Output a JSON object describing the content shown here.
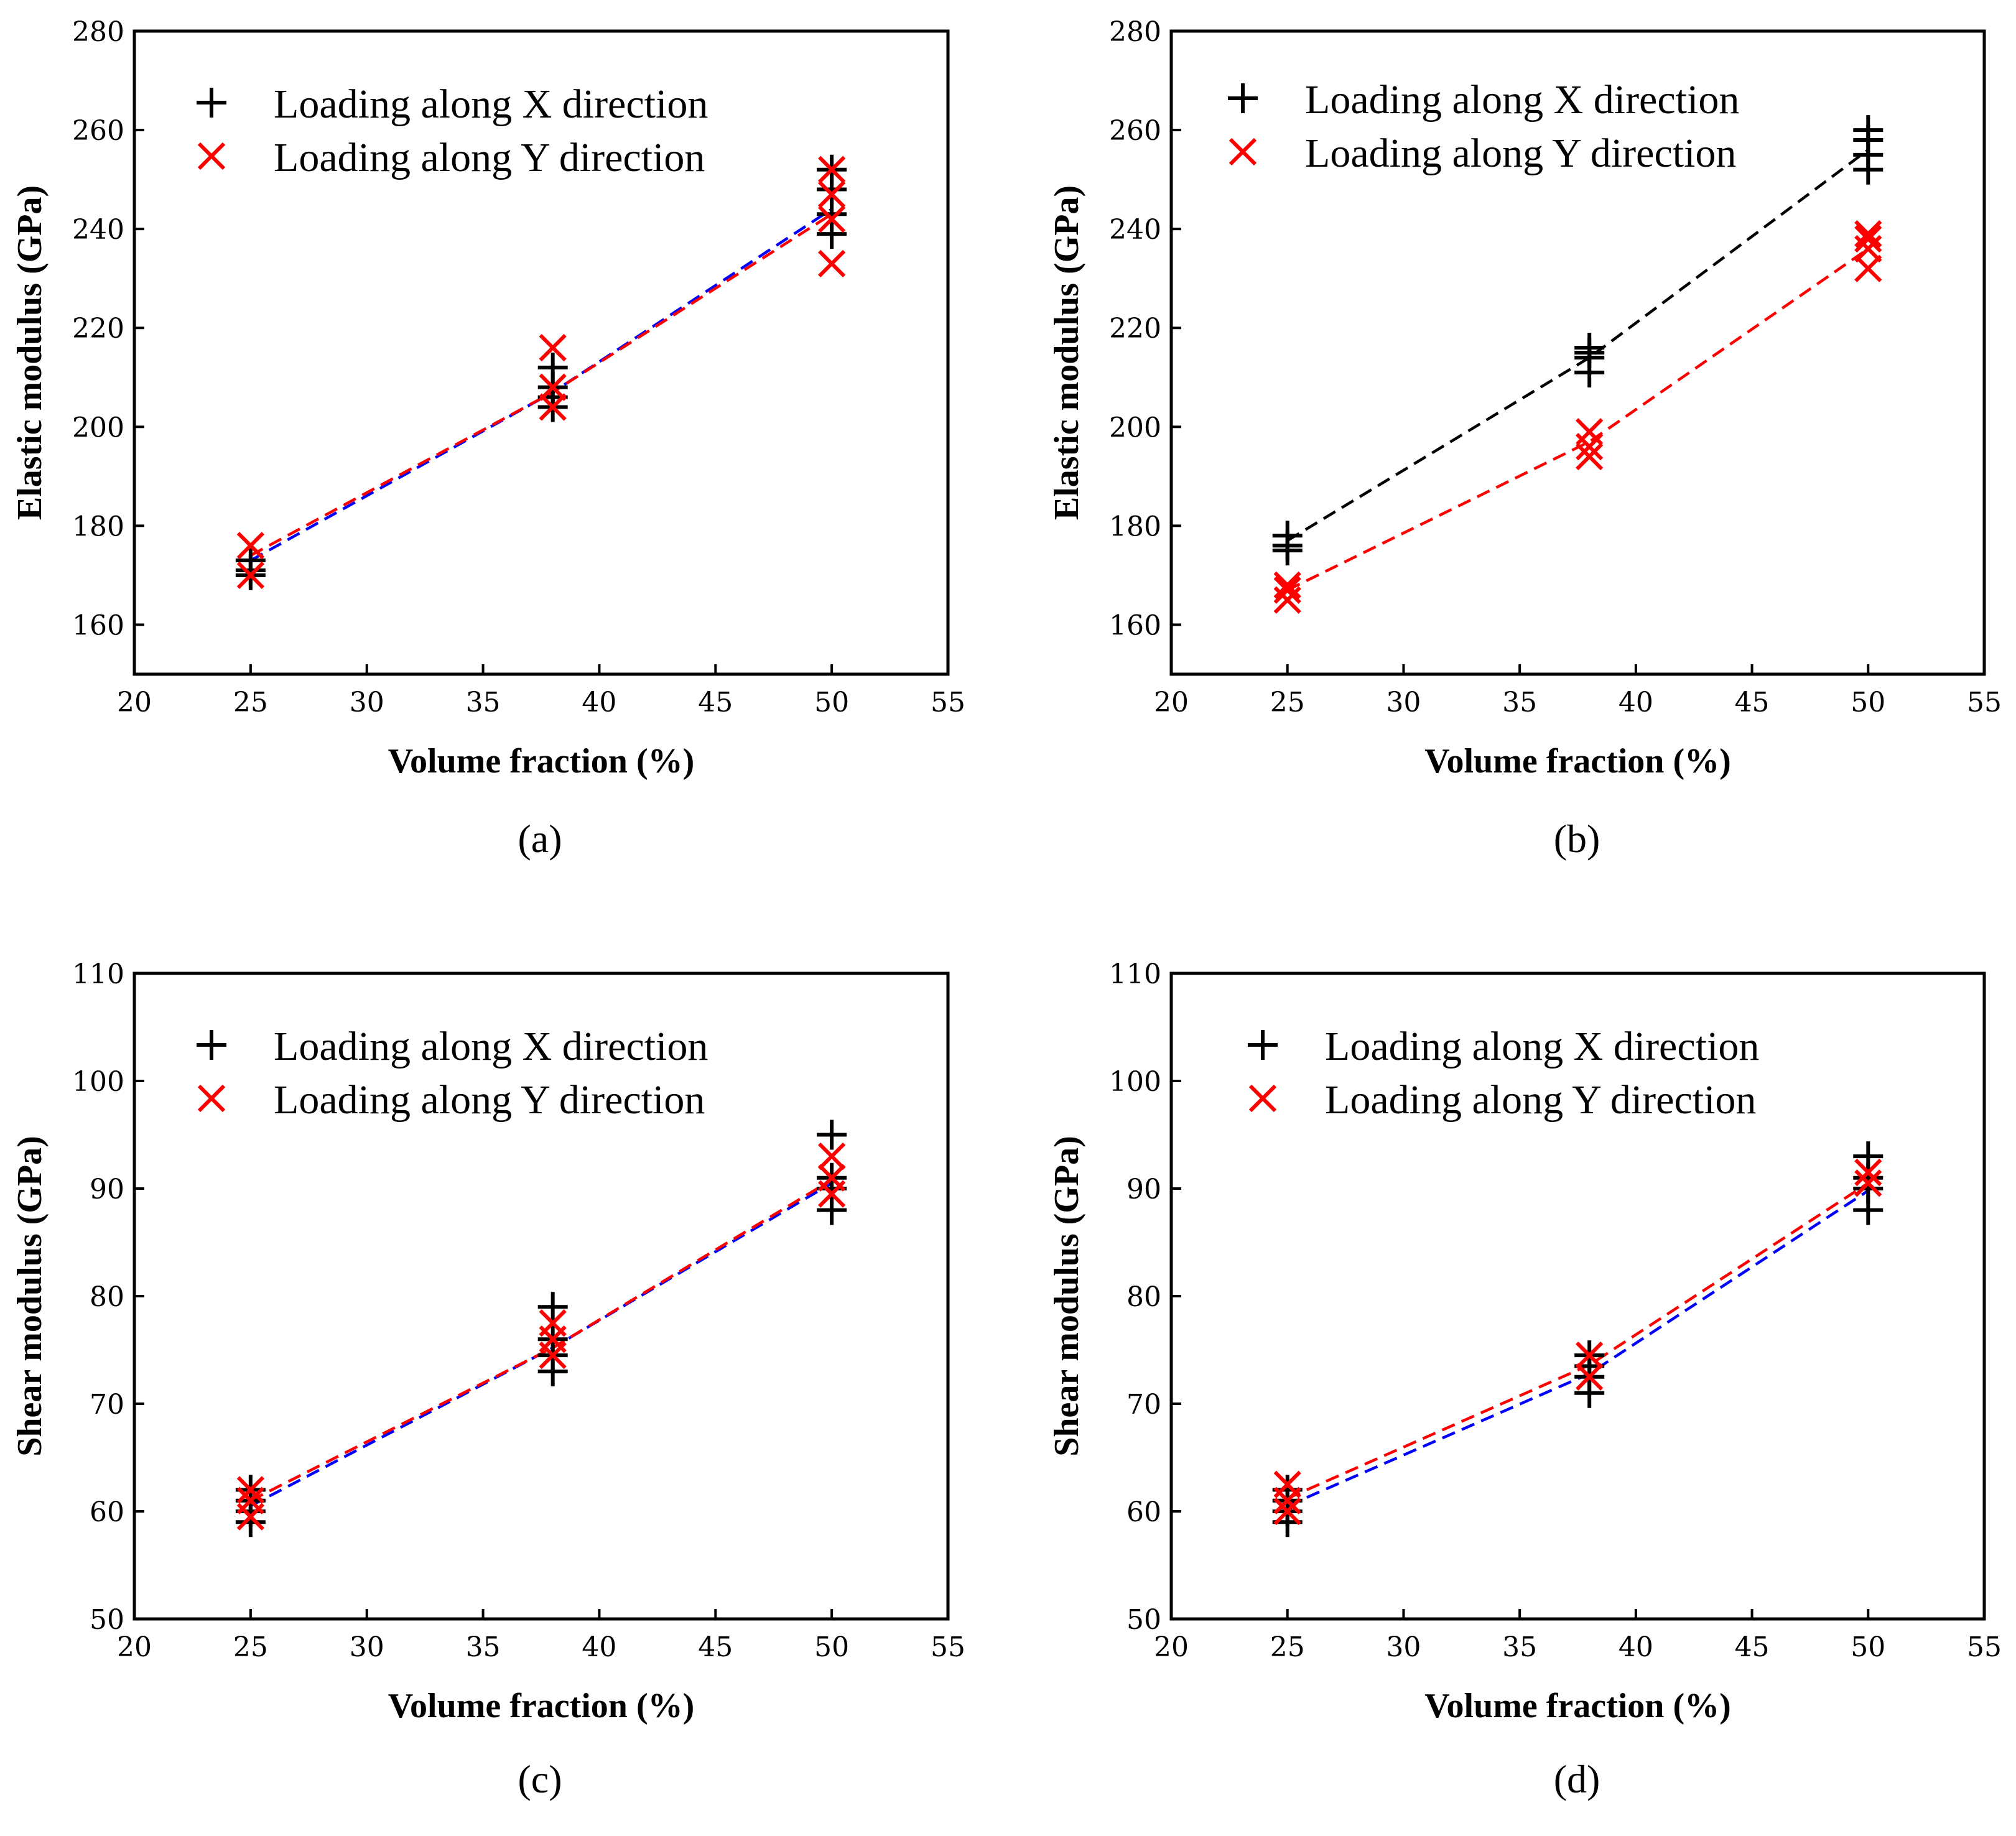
{
  "colors": {
    "x_direction": "#000000",
    "y_direction": "#ff0000",
    "fit_x_a": "#0000ff",
    "fit_y": "#ff0000",
    "fit_x_b": "#000000"
  },
  "legend": {
    "x_label": "Loading along X direction",
    "y_label": "Loading along Y direction",
    "x_marker": "plus-icon",
    "y_marker": "x-mark-icon"
  },
  "chart_data": [
    {
      "panel_label": "(a)",
      "type": "scatter",
      "xlabel": "Volume fraction (%)",
      "ylabel": "Elastic modulus (GPa)",
      "xlim": [
        20,
        55
      ],
      "ylim": [
        150,
        280
      ],
      "xticks": [
        20,
        25,
        30,
        35,
        40,
        45,
        50,
        55
      ],
      "yticks": [
        160,
        180,
        200,
        220,
        240,
        260,
        280
      ],
      "series": [
        {
          "name": "Loading along X direction",
          "marker": "plus",
          "color": "#000000",
          "points": [
            [
              25,
              170
            ],
            [
              25,
              171
            ],
            [
              25,
              173
            ],
            [
              38,
              204
            ],
            [
              38,
              206
            ],
            [
              38,
              208
            ],
            [
              38,
              212
            ],
            [
              50,
              239
            ],
            [
              50,
              243
            ],
            [
              50,
              248
            ],
            [
              50,
              252
            ]
          ],
          "fit": {
            "x": [
              25,
              38,
              50
            ],
            "y": [
              173,
              207,
              244
            ],
            "color": "#0000ff"
          }
        },
        {
          "name": "Loading along Y direction",
          "marker": "x",
          "color": "#ff0000",
          "points": [
            [
              25,
              170
            ],
            [
              25,
              176
            ],
            [
              38,
              204
            ],
            [
              38,
              208
            ],
            [
              38,
              216
            ],
            [
              50,
              233
            ],
            [
              50,
              242
            ],
            [
              50,
              247
            ],
            [
              50,
              252
            ]
          ],
          "fit": {
            "x": [
              25,
              38,
              50
            ],
            "y": [
              174,
              207,
              243
            ],
            "color": "#ff0000"
          }
        }
      ]
    },
    {
      "panel_label": "(b)",
      "type": "scatter",
      "xlabel": "Volume fraction (%)",
      "ylabel": "Elastic modulus (GPa)",
      "xlim": [
        20,
        55
      ],
      "ylim": [
        150,
        280
      ],
      "xticks": [
        20,
        25,
        30,
        35,
        40,
        45,
        50,
        55
      ],
      "yticks": [
        160,
        180,
        200,
        220,
        240,
        260,
        280
      ],
      "series": [
        {
          "name": "Loading along X direction",
          "marker": "plus",
          "color": "#000000",
          "points": [
            [
              25,
              175
            ],
            [
              25,
              176
            ],
            [
              25,
              178
            ],
            [
              38,
              211
            ],
            [
              38,
              214
            ],
            [
              38,
              215
            ],
            [
              38,
              216
            ],
            [
              50,
              252
            ],
            [
              50,
              255
            ],
            [
              50,
              258
            ],
            [
              50,
              260
            ]
          ],
          "fit": {
            "x": [
              25,
              38,
              50
            ],
            "y": [
              177,
              214,
              256
            ],
            "color": "#000000"
          }
        },
        {
          "name": "Loading along Y direction",
          "marker": "x",
          "color": "#ff0000",
          "points": [
            [
              25,
              165
            ],
            [
              25,
              167
            ],
            [
              25,
              168
            ],
            [
              38,
              194
            ],
            [
              38,
              196
            ],
            [
              38,
              199
            ],
            [
              50,
              232
            ],
            [
              50,
              236
            ],
            [
              50,
              238
            ],
            [
              50,
              239
            ]
          ],
          "fit": {
            "x": [
              25,
              38,
              50
            ],
            "y": [
              167,
              197,
              236
            ],
            "color": "#ff0000"
          }
        }
      ]
    },
    {
      "panel_label": "(c)",
      "type": "scatter",
      "xlabel": "Volume fraction (%)",
      "ylabel": "Shear modulus (GPa)",
      "xlim": [
        20,
        55
      ],
      "ylim": [
        50,
        110
      ],
      "xticks": [
        20,
        25,
        30,
        35,
        40,
        45,
        50,
        55
      ],
      "yticks": [
        50,
        60,
        70,
        80,
        90,
        100,
        110
      ],
      "series": [
        {
          "name": "Loading along X direction",
          "marker": "plus",
          "color": "#000000",
          "points": [
            [
              25,
              59
            ],
            [
              25,
              60
            ],
            [
              25,
              61
            ],
            [
              25,
              62
            ],
            [
              38,
              73
            ],
            [
              38,
              74.5
            ],
            [
              38,
              76
            ],
            [
              38,
              79
            ],
            [
              50,
              88
            ],
            [
              50,
              90
            ],
            [
              50,
              91
            ],
            [
              50,
              95
            ]
          ],
          "fit": {
            "x": [
              25,
              38,
              50
            ],
            "y": [
              60.5,
              75.2,
              90.5
            ],
            "color": "#0000ff"
          }
        },
        {
          "name": "Loading along Y direction",
          "marker": "x",
          "color": "#ff0000",
          "points": [
            [
              25,
              59.5
            ],
            [
              25,
              61
            ],
            [
              25,
              62
            ],
            [
              38,
              74.5
            ],
            [
              38,
              76
            ],
            [
              38,
              77.5
            ],
            [
              50,
              89.5
            ],
            [
              50,
              91
            ],
            [
              50,
              93
            ]
          ],
          "fit": {
            "x": [
              25,
              38,
              50
            ],
            "y": [
              61,
              75.2,
              90.8
            ],
            "color": "#ff0000"
          }
        }
      ]
    },
    {
      "panel_label": "(d)",
      "type": "scatter",
      "xlabel": "Volume fraction (%)",
      "ylabel": "Shear modulus (GPa)",
      "xlim": [
        20,
        55
      ],
      "ylim": [
        50,
        110
      ],
      "xticks": [
        20,
        25,
        30,
        35,
        40,
        45,
        50,
        55
      ],
      "yticks": [
        50,
        60,
        70,
        80,
        90,
        100,
        110
      ],
      "series": [
        {
          "name": "Loading along X direction",
          "marker": "plus",
          "color": "#000000",
          "points": [
            [
              25,
              59
            ],
            [
              25,
              60
            ],
            [
              25,
              61
            ],
            [
              25,
              62
            ],
            [
              38,
              71
            ],
            [
              38,
              72.5
            ],
            [
              38,
              73.5
            ],
            [
              38,
              74.5
            ],
            [
              50,
              88
            ],
            [
              50,
              90
            ],
            [
              50,
              91
            ],
            [
              50,
              93
            ]
          ],
          "fit": {
            "x": [
              25,
              38,
              50
            ],
            "y": [
              60.5,
              72.8,
              89.8
            ],
            "color": "#0000ff"
          }
        },
        {
          "name": "Loading along Y direction",
          "marker": "x",
          "color": "#ff0000",
          "points": [
            [
              25,
              60
            ],
            [
              25,
              61
            ],
            [
              25,
              62.5
            ],
            [
              38,
              72.5
            ],
            [
              38,
              74.5
            ],
            [
              50,
              90.5
            ],
            [
              50,
              91.5
            ]
          ],
          "fit": {
            "x": [
              25,
              38,
              50
            ],
            "y": [
              61.2,
              73.6,
              90.5
            ],
            "color": "#ff0000"
          }
        }
      ]
    }
  ]
}
